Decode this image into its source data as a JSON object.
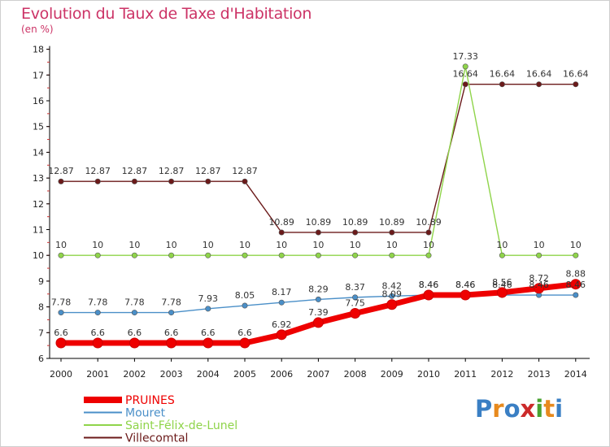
{
  "title": "Evolution du Taux de Taxe d'Habitation",
  "subtitle": "(en %)",
  "brand": {
    "letters": [
      "P",
      "r",
      "o",
      "x",
      "i",
      "t",
      "i"
    ],
    "colors": [
      "#3a7fc4",
      "#e78a1e",
      "#3a7fc4",
      "#cc2a2a",
      "#4aa332",
      "#e78a1e",
      "#3a7fc4"
    ]
  },
  "chart_data": {
    "type": "line",
    "x": [
      "2000",
      "2001",
      "2002",
      "2003",
      "2004",
      "2005",
      "2006",
      "2007",
      "2008",
      "2009",
      "2010",
      "2011",
      "2012",
      "2013",
      "2014"
    ],
    "ylim": [
      6,
      18
    ],
    "yticks": [
      "6",
      "7",
      "8",
      "9",
      "10",
      "11",
      "12",
      "13",
      "14",
      "15",
      "16",
      "17",
      "18"
    ],
    "grid": false,
    "legend_position": "bottom-left",
    "series": [
      {
        "name": "Villecomtal",
        "color": "#6b1a1a",
        "values": [
          12.87,
          12.87,
          12.87,
          12.87,
          12.87,
          12.87,
          10.89,
          10.89,
          10.89,
          10.89,
          10.89,
          16.64,
          16.64,
          16.64,
          16.64
        ],
        "labels": [
          "12.87",
          "12.87",
          "12.87",
          "12.87",
          "12.87",
          "12.87",
          "10.89",
          "10.89",
          "10.89",
          "10.89",
          "10.89",
          "16.64",
          "16.64",
          "16.64",
          "16.64"
        ]
      },
      {
        "name": "Saint-Félix-de-Lunel",
        "color": "#8fd44a",
        "values": [
          10,
          10,
          10,
          10,
          10,
          10,
          10,
          10,
          10,
          10,
          10,
          17.33,
          10,
          10,
          10
        ],
        "labels": [
          "10",
          "10",
          "10",
          "10",
          "10",
          "10",
          "10",
          "10",
          "10",
          "10",
          "10",
          "17.33",
          "10",
          "10",
          "10"
        ]
      },
      {
        "name": "Mouret",
        "color": "#4a8fc8",
        "values": [
          7.78,
          7.78,
          7.78,
          7.78,
          7.93,
          8.05,
          8.17,
          8.29,
          8.37,
          8.42,
          8.46,
          8.46,
          8.46,
          8.46,
          8.46
        ],
        "labels": [
          "7.78",
          "7.78",
          "7.78",
          "7.78",
          "7.93",
          "8.05",
          "8.17",
          "8.29",
          "8.37",
          "8.42",
          "8.46",
          "8.46",
          "8.46",
          "8.46",
          "8.46"
        ]
      },
      {
        "name": "PRUINES",
        "color": "#ee0000",
        "values": [
          6.6,
          6.6,
          6.6,
          6.6,
          6.6,
          6.6,
          6.92,
          7.39,
          7.75,
          8.09,
          8.46,
          8.46,
          8.56,
          8.72,
          8.88
        ],
        "labels": [
          "6.6",
          "6.6",
          "6.6",
          "6.6",
          "6.6",
          "6.6",
          "6.92",
          "7.39",
          "7.75",
          "8.09",
          "8.46",
          "8.46",
          "8.56",
          "8.72",
          "8.88"
        ]
      }
    ],
    "legend_order": [
      "PRUINES",
      "Mouret",
      "Saint-Félix-de-Lunel",
      "Villecomtal"
    ]
  }
}
